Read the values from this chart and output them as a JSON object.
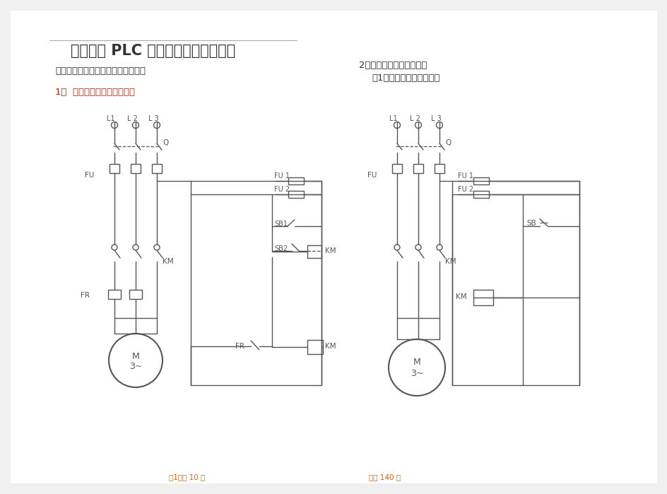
{
  "bg_color": "#ffffff",
  "page_bg": "#f0f0f0",
  "lc": "#555555",
  "lc2": "#333333",
  "title": "《电器及 PLC 控制技术》电气原理图",
  "sub_left": "、三相异步电机的全压起动控制电路",
  "sub1_left": "1、  电动机连续运转控制电路",
  "sub_right": "2、电动机的点动控制电路",
  "sub2_right": "（1）仅能点动控制的电路",
  "footer_l": "第1页共 10 页",
  "footer_r": "共分 140 分",
  "footer_color": "#cc6600",
  "red_color": "#cc2200",
  "title_color": "#333333"
}
